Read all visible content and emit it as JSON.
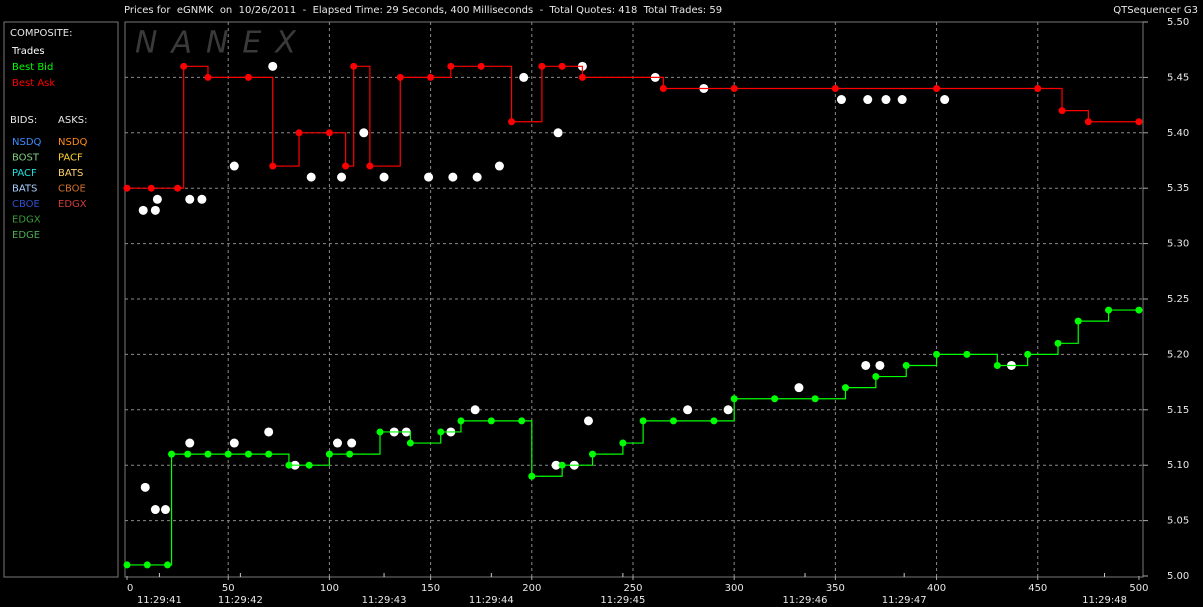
{
  "chart_data": {
    "type": "line",
    "title": "Prices for  eGNMK  on  10/26/2011  -  Elapsed Time: 29 Seconds, 400 Milliseconds  -  Total Quotes: 418  Total Trades: 59",
    "subtitle": "QTSequencer G3",
    "watermark": "NANEX",
    "composite_label": "COMPOSITE:",
    "bids_label": "BIDS:",
    "asks_label": "ASKS:",
    "legend_bids": [
      {
        "name": "NSDQ",
        "color": "#3d8eff"
      },
      {
        "name": "BOST",
        "color": "#7ed07e"
      },
      {
        "name": "PACF",
        "color": "#1fe0e0"
      },
      {
        "name": "BATS",
        "color": "#a8d0ff"
      },
      {
        "name": "CBOE",
        "color": "#3350c8"
      },
      {
        "name": "EDGX",
        "color": "#3a9a3a"
      },
      {
        "name": "EDGE",
        "color": "#4caf50"
      }
    ],
    "legend_asks": [
      {
        "name": "NSDQ",
        "color": "#ff8c1a"
      },
      {
        "name": "PACF",
        "color": "#ffd02a"
      },
      {
        "name": "BATS",
        "color": "#ffd070"
      },
      {
        "name": "CBOE",
        "color": "#d0702a"
      },
      {
        "name": "EDGX",
        "color": "#d03a3a"
      }
    ],
    "series": [
      {
        "name": "Trades",
        "color": "#ffffff",
        "style": "dots",
        "x": [
          8,
          14,
          15,
          31,
          37,
          53,
          72,
          91,
          106,
          117,
          127,
          149,
          161,
          173,
          184,
          196,
          213,
          225,
          261,
          285,
          353,
          366,
          375,
          383,
          404,
          9,
          14,
          19,
          31,
          53,
          70,
          83,
          104,
          111,
          132,
          138,
          160,
          172,
          212,
          221,
          228,
          277,
          297,
          332,
          365,
          372,
          437
        ],
        "values": [
          5.33,
          5.33,
          5.34,
          5.34,
          5.34,
          5.37,
          5.46,
          5.36,
          5.36,
          5.4,
          5.36,
          5.36,
          5.36,
          5.36,
          5.37,
          5.45,
          5.4,
          5.46,
          5.45,
          5.44,
          5.43,
          5.43,
          5.43,
          5.43,
          5.43,
          5.08,
          5.06,
          5.06,
          5.12,
          5.12,
          5.13,
          5.1,
          5.12,
          5.12,
          5.13,
          5.13,
          5.13,
          5.15,
          5.1,
          5.1,
          5.14,
          5.15,
          5.15,
          5.17,
          5.19,
          5.19,
          5.19
        ]
      },
      {
        "name": "Best Bid",
        "color": "#00ff00",
        "style": "step",
        "x": [
          0,
          10,
          20,
          22,
          30,
          40,
          50,
          60,
          70,
          80,
          90,
          100,
          110,
          125,
          140,
          155,
          165,
          180,
          195,
          200,
          215,
          230,
          245,
          255,
          270,
          290,
          300,
          320,
          340,
          355,
          370,
          385,
          400,
          415,
          430,
          445,
          460,
          470,
          485,
          500
        ],
        "values": [
          5.01,
          5.01,
          5.01,
          5.11,
          5.11,
          5.11,
          5.11,
          5.11,
          5.11,
          5.1,
          5.1,
          5.11,
          5.11,
          5.13,
          5.12,
          5.13,
          5.14,
          5.14,
          5.14,
          5.09,
          5.1,
          5.11,
          5.12,
          5.14,
          5.14,
          5.14,
          5.16,
          5.16,
          5.16,
          5.17,
          5.18,
          5.19,
          5.2,
          5.2,
          5.19,
          5.2,
          5.21,
          5.23,
          5.24,
          5.24
        ]
      },
      {
        "name": "Best Ask",
        "color": "#ff0000",
        "style": "step",
        "x": [
          0,
          12,
          25,
          28,
          40,
          60,
          72,
          85,
          100,
          108,
          112,
          120,
          135,
          150,
          160,
          175,
          190,
          205,
          215,
          225,
          265,
          300,
          350,
          400,
          450,
          462,
          475,
          500
        ],
        "values": [
          5.35,
          5.35,
          5.35,
          5.46,
          5.45,
          5.45,
          5.37,
          5.4,
          5.4,
          5.37,
          5.46,
          5.37,
          5.45,
          5.45,
          5.46,
          5.46,
          5.41,
          5.46,
          5.46,
          5.45,
          5.44,
          5.44,
          5.44,
          5.44,
          5.44,
          5.42,
          5.41,
          5.41
        ]
      }
    ],
    "xlim": [
      -1,
      502
    ],
    "ylim": [
      5.0,
      5.5
    ],
    "xticks": [
      0,
      50,
      100,
      150,
      200,
      250,
      300,
      350,
      400,
      450,
      500
    ],
    "time_ticks": [
      {
        "value": 16,
        "label": "11:29:41"
      },
      {
        "value": 56,
        "label": "11:29:42"
      },
      {
        "value": 127,
        "label": "11:29:43"
      },
      {
        "value": 180,
        "label": "11:29:44"
      },
      {
        "value": 245,
        "label": "11:29:45"
      },
      {
        "value": 335,
        "label": "11:29:46"
      },
      {
        "value": 384,
        "label": "11:29:47"
      },
      {
        "value": 483,
        "label": "11:29:48"
      }
    ],
    "yticks": [
      {
        "value": 5.0,
        "label": "5.00"
      },
      5.05,
      {
        "value": 5.1,
        "label": "5.10"
      },
      5.15,
      {
        "value": 5.2,
        "label": "5.20"
      },
      5.25,
      {
        "value": 5.3,
        "label": "5.30"
      },
      5.35,
      {
        "value": 5.4,
        "label": "5.40"
      },
      5.45,
      {
        "value": 5.5,
        "label": "5.50"
      }
    ],
    "grid": true,
    "background": "#000000"
  }
}
